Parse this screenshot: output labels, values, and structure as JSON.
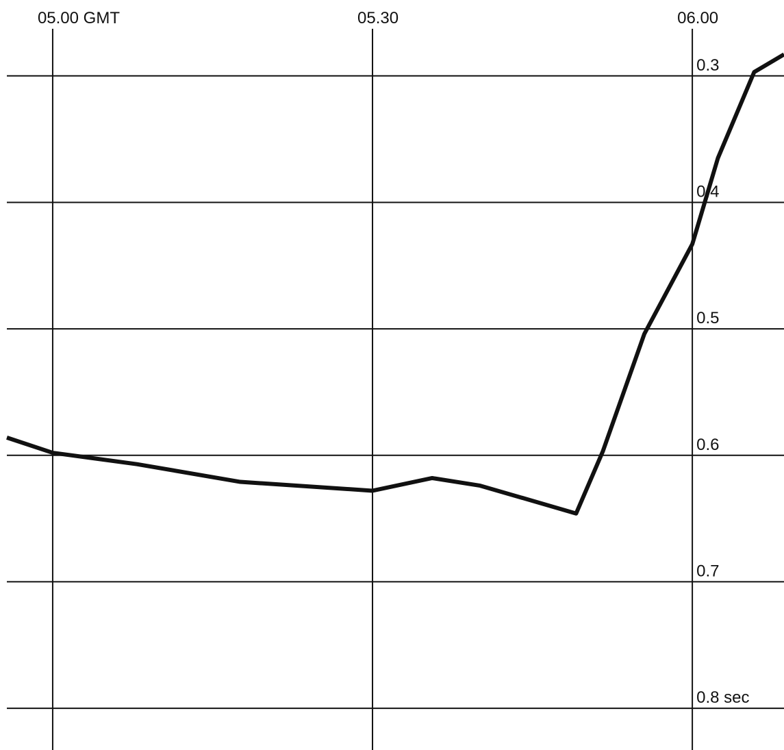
{
  "chart_data": {
    "type": "line",
    "x": [
      -4.3,
      0,
      7.9,
      17.6,
      30,
      35.6,
      40.1,
      49.1,
      51.6,
      55.5,
      60,
      62.4,
      65.8,
      68.6
    ],
    "series": [
      {
        "color": "#111111",
        "values": [
          0.586,
          0.598,
          0.607,
          0.621,
          0.628,
          0.618,
          0.624,
          0.646,
          0.597,
          0.504,
          0.433,
          0.365,
          0.297,
          0.283
        ]
      }
    ],
    "xlim": [
      -4.3,
      68.6
    ],
    "xticks": [
      {
        "value": 0,
        "label": "05.00 GMT"
      },
      {
        "value": 30,
        "label": "05.30"
      },
      {
        "value": 60,
        "label": "06.00"
      }
    ],
    "ylim": [
      0.24,
      0.833
    ],
    "y_inverted": true,
    "yticks": [
      0.3,
      0.4,
      0.5,
      0.6,
      0.7,
      {
        "value": 0.8,
        "label": "0.8 sec"
      }
    ],
    "grid": true
  }
}
